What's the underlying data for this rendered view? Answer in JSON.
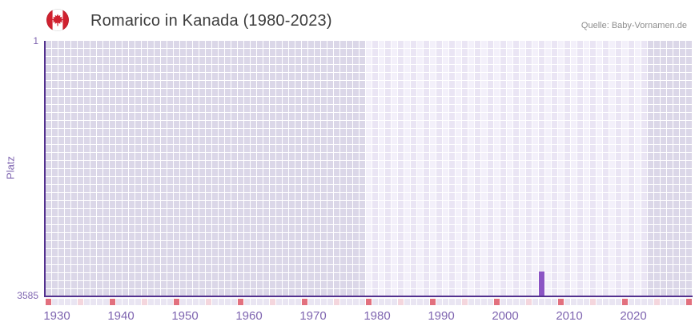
{
  "header": {
    "title": "Romarico in Kanada (1980-2023)",
    "source": "Quelle: Baby-Vornamen.de"
  },
  "chart_data": {
    "type": "bar",
    "title": "Romarico in Kanada (1980-2023)",
    "xlabel": "",
    "ylabel": "Platz",
    "y_axis": {
      "min": 1,
      "max": 3585,
      "inverted": true,
      "tick_labels": [
        "1",
        "3585"
      ]
    },
    "x_axis": {
      "year_min": 1930,
      "year_max": 2030,
      "tick_years": [
        1930,
        1940,
        1950,
        1960,
        1970,
        1980,
        1990,
        2000,
        2010,
        2020
      ]
    },
    "data_period": {
      "start": 1980,
      "end": 2023
    },
    "points": [
      {
        "year": 2007,
        "rank": 3242
      }
    ],
    "marker_row": {
      "decade_interval": 10,
      "half_interval": 5
    },
    "grid": true,
    "legend": null,
    "colors": {
      "bar": "#8b55c4",
      "axis_line": "#53318f",
      "tick_text": "#7e64b0",
      "cell_outside": "#dbd7e8",
      "cell_inside_a": "#f3f0fa",
      "cell_inside_b": "#eae5f4",
      "marker_default": "#e9e5f2",
      "marker_half_decade": "#f4d6dd",
      "marker_decade": "#e2707e",
      "title_text": "#3d3d3d",
      "source_text": "#8e8e8e",
      "flag_red": "#d0212f"
    }
  }
}
